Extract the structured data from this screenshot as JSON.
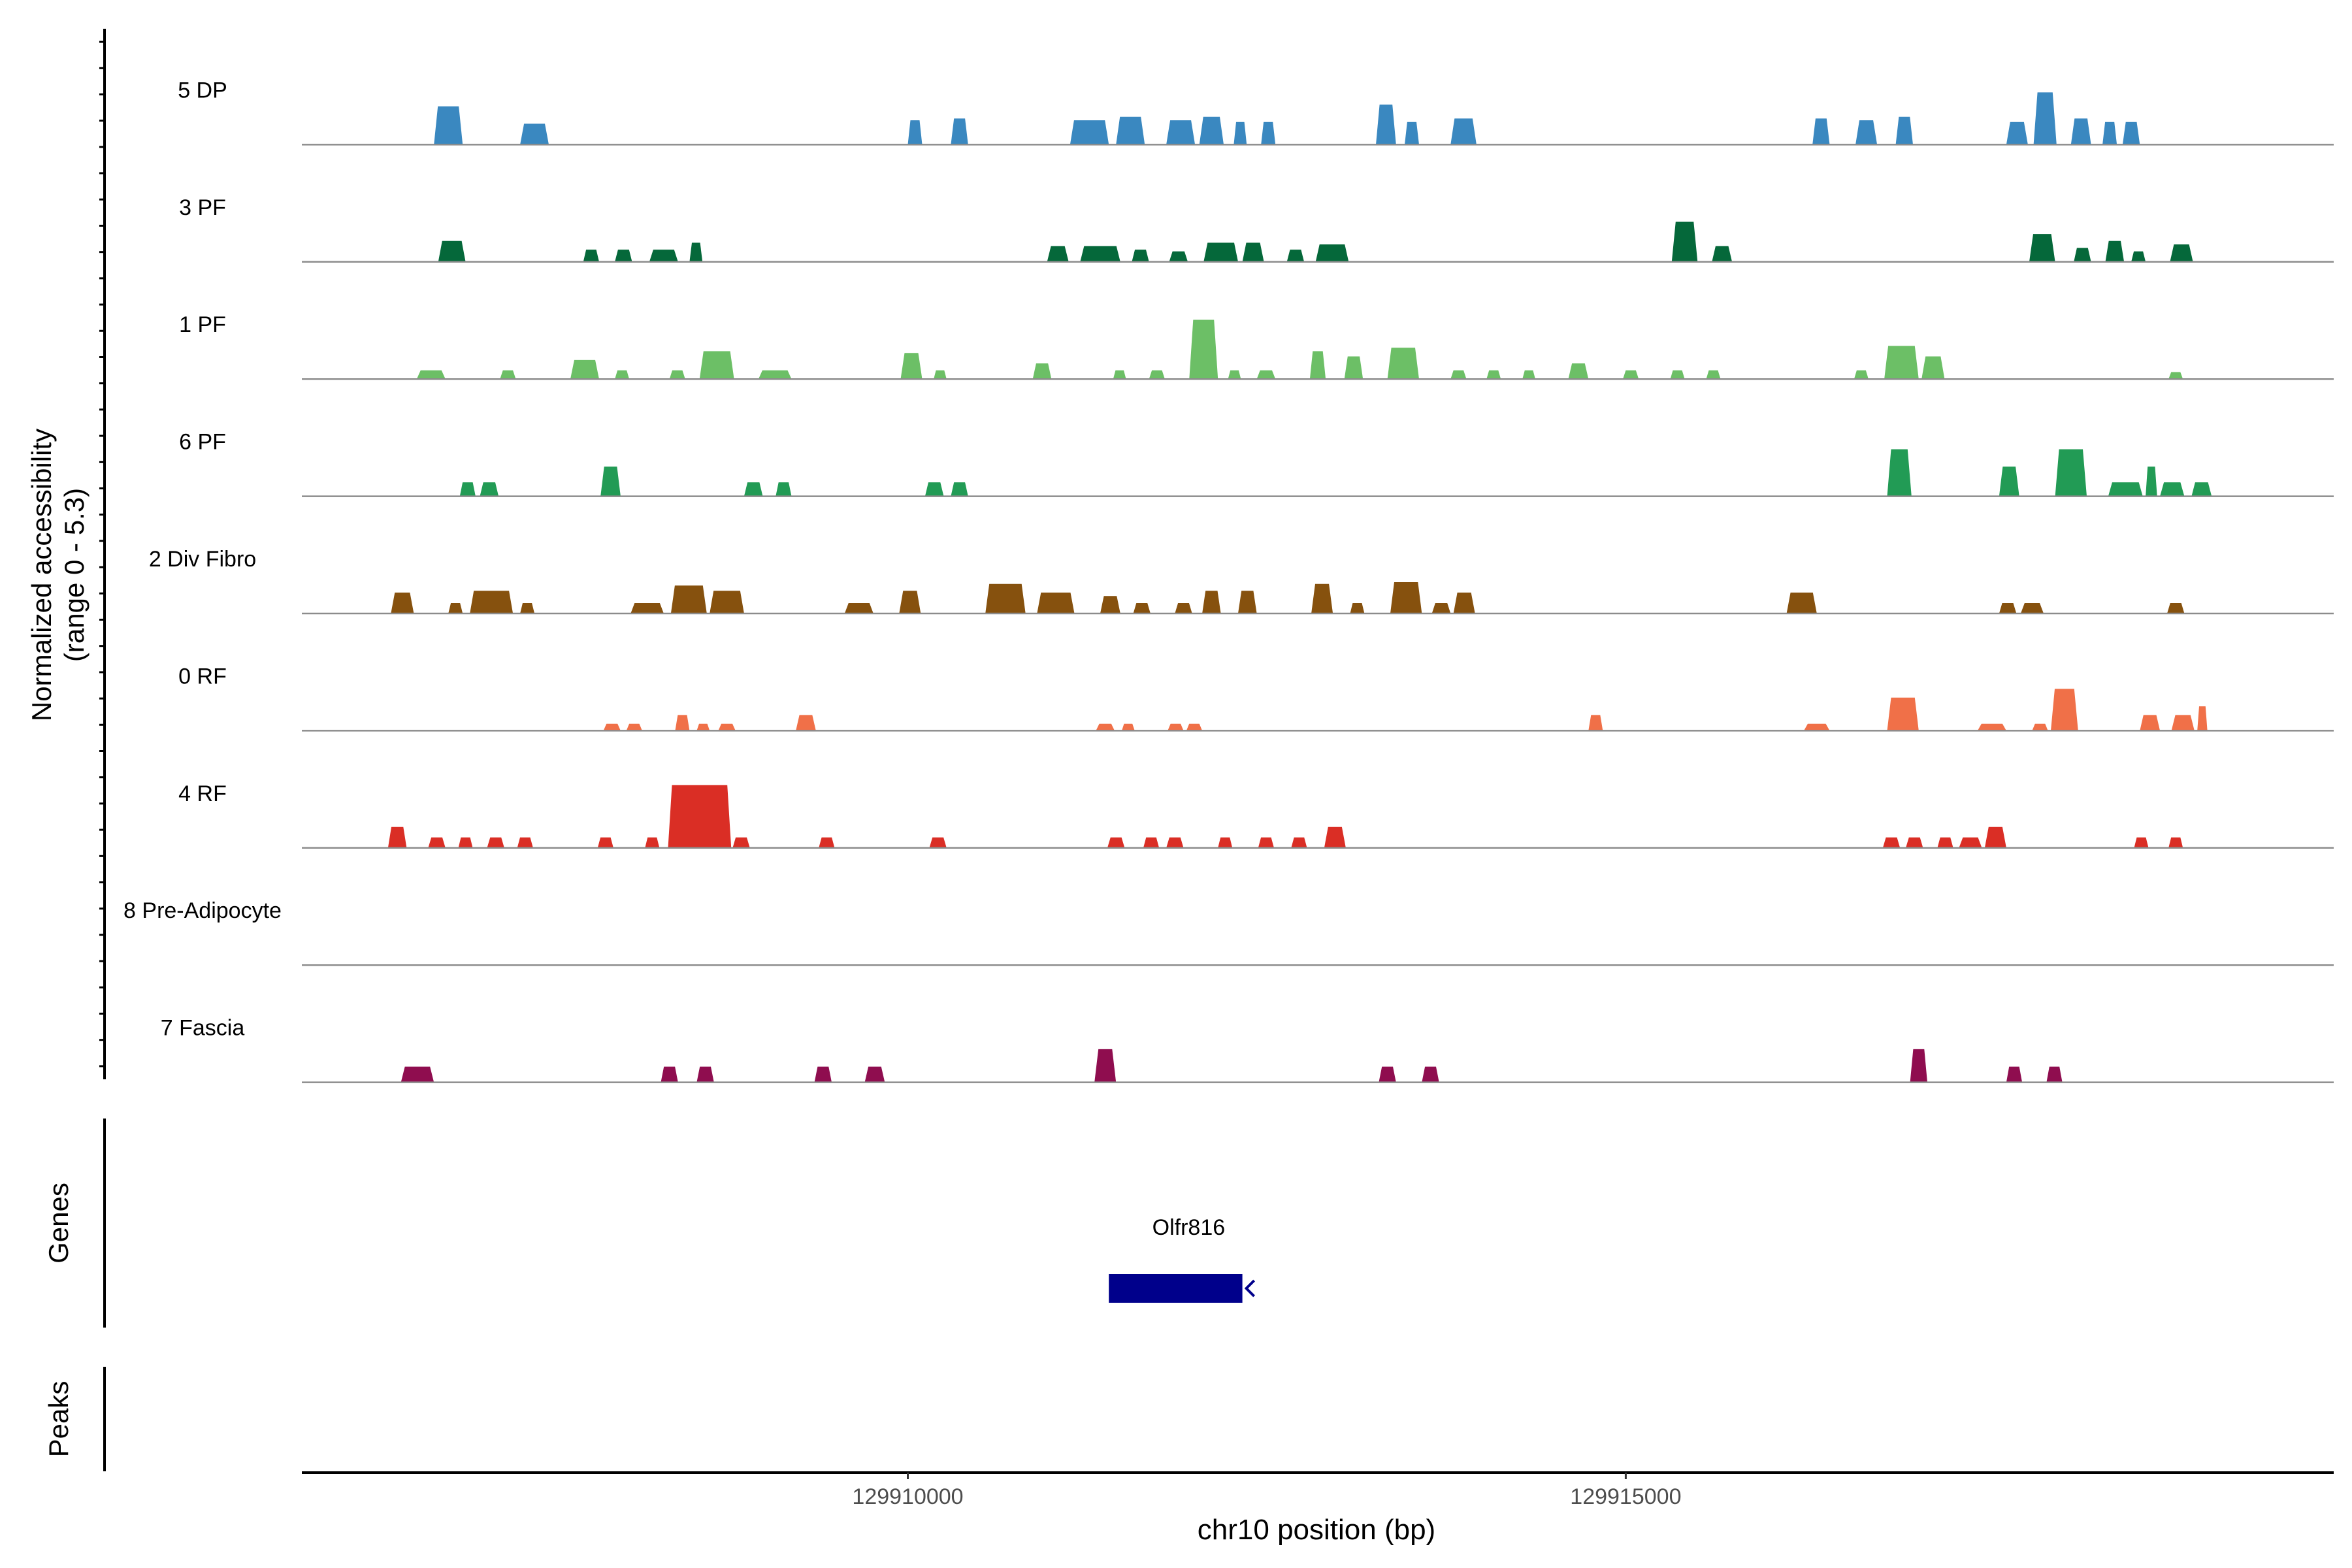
{
  "chart_data": {
    "type": "area",
    "title": "",
    "ylabel_line1": "Normalized accessibility",
    "ylabel_line2": "(range 0 - 5.3)",
    "xlabel": "chr10 position (bp)",
    "xlim": [
      129905780,
      129919930
    ],
    "ylim": [
      0,
      5.3
    ],
    "x_ticks": [
      {
        "value": 129910000,
        "label": "129910000"
      },
      {
        "value": 129915000,
        "label": "129915000"
      }
    ],
    "genes_label": "Genes",
    "peaks_label": "Peaks",
    "gene": {
      "name": "Olfr816",
      "start": 129911400,
      "end": 129912330,
      "strand": "-",
      "color": "#00008b"
    },
    "tracks": [
      {
        "name": "5 DP",
        "color": "#3a88c0",
        "peaks": [
          [
            129906700,
            129906900,
            2.2
          ],
          [
            129907300,
            129907500,
            1.2
          ],
          [
            129910000,
            129910100,
            1.4
          ],
          [
            129910300,
            129910420,
            1.5
          ],
          [
            129911130,
            129911400,
            1.4
          ],
          [
            129911450,
            129911650,
            1.6
          ],
          [
            129911800,
            129912000,
            1.4
          ],
          [
            129912030,
            129912200,
            1.6
          ],
          [
            129912270,
            129912360,
            1.3
          ],
          [
            129912460,
            129912560,
            1.3
          ],
          [
            129913260,
            129913400,
            2.3
          ],
          [
            129913460,
            129913560,
            1.3
          ],
          [
            129913780,
            129913960,
            1.5
          ],
          [
            129916300,
            129916420,
            1.5
          ],
          [
            129916600,
            129916750,
            1.4
          ],
          [
            129916880,
            129917000,
            1.6
          ],
          [
            129917650,
            129917800,
            1.3
          ],
          [
            129917840,
            129918000,
            3.0
          ],
          [
            129918100,
            129918240,
            1.5
          ],
          [
            129918320,
            129918420,
            1.3
          ],
          [
            129918460,
            129918580,
            1.3
          ]
        ]
      },
      {
        "name": "3 PF",
        "color": "#05683a",
        "peaks": [
          [
            129906730,
            129906920,
            1.2
          ],
          [
            129907740,
            129907850,
            0.7
          ],
          [
            129907960,
            129908080,
            0.7
          ],
          [
            129908200,
            129908400,
            0.7
          ],
          [
            129908480,
            129908570,
            1.1
          ],
          [
            129910970,
            129911120,
            0.9
          ],
          [
            129911200,
            129911480,
            0.9
          ],
          [
            129911560,
            129911680,
            0.7
          ],
          [
            129911820,
            129911950,
            0.6
          ],
          [
            129912060,
            129912300,
            1.1
          ],
          [
            129912330,
            129912480,
            1.1
          ],
          [
            129912640,
            129912760,
            0.7
          ],
          [
            129912840,
            129913070,
            1.0
          ],
          [
            129915320,
            129915500,
            2.3
          ],
          [
            129915600,
            129915740,
            0.9
          ],
          [
            129917810,
            129917990,
            1.6
          ],
          [
            129918120,
            129918240,
            0.8
          ],
          [
            129918340,
            129918470,
            1.2
          ],
          [
            129918520,
            129918620,
            0.6
          ],
          [
            129918790,
            129918950,
            1.0
          ]
        ]
      },
      {
        "name": "1 PF",
        "color": "#6cbf66",
        "peaks": [
          [
            129906580,
            129906780,
            0.5
          ],
          [
            129907160,
            129907270,
            0.5
          ],
          [
            129907650,
            129907850,
            1.1
          ],
          [
            129907960,
            129908060,
            0.5
          ],
          [
            129908340,
            129908450,
            0.5
          ],
          [
            129908550,
            129908790,
            1.6
          ],
          [
            129908960,
            129909190,
            0.5
          ],
          [
            129909950,
            129910100,
            1.5
          ],
          [
            129910180,
            129910270,
            0.5
          ],
          [
            129910870,
            129911000,
            0.9
          ],
          [
            129911430,
            129911520,
            0.5
          ],
          [
            129911680,
            129911790,
            0.5
          ],
          [
            129911960,
            129912160,
            3.4
          ],
          [
            129912230,
            129912320,
            0.5
          ],
          [
            129912430,
            129912560,
            0.5
          ],
          [
            129912800,
            129912910,
            1.6
          ],
          [
            129913040,
            129913170,
            1.3
          ],
          [
            129913340,
            129913560,
            1.8
          ],
          [
            129913780,
            129913890,
            0.5
          ],
          [
            129914030,
            129914130,
            0.5
          ],
          [
            129914280,
            129914370,
            0.5
          ],
          [
            129914600,
            129914740,
            0.9
          ],
          [
            129914980,
            129915090,
            0.5
          ],
          [
            129915310,
            129915410,
            0.5
          ],
          [
            129915560,
            129915660,
            0.5
          ],
          [
            129916590,
            129916690,
            0.5
          ],
          [
            129916800,
            129917040,
            1.9
          ],
          [
            129917060,
            129917220,
            1.3
          ],
          [
            129918780,
            129918880,
            0.4
          ]
        ]
      },
      {
        "name": "6 PF",
        "color": "#229b55",
        "peaks": [
          [
            129906880,
            129906990,
            0.8
          ],
          [
            129907020,
            129907150,
            0.8
          ],
          [
            129907860,
            129908000,
            1.7
          ],
          [
            129908860,
            129908990,
            0.8
          ],
          [
            129909080,
            129909190,
            0.8
          ],
          [
            129910120,
            129910250,
            0.8
          ],
          [
            129910300,
            129910420,
            0.8
          ],
          [
            129916820,
            129916990,
            2.7
          ],
          [
            129917600,
            129917740,
            1.7
          ],
          [
            129917990,
            129918210,
            2.7
          ],
          [
            129918360,
            129918600,
            0.8
          ],
          [
            129918620,
            129918700,
            1.7
          ],
          [
            129918720,
            129918890,
            0.8
          ],
          [
            129918940,
            129919080,
            0.8
          ]
        ]
      },
      {
        "name": "2 Div Fibro",
        "color": "#86510e",
        "peaks": [
          [
            129906400,
            129906560,
            1.2
          ],
          [
            129906800,
            129906900,
            0.6
          ],
          [
            129906950,
            129907250,
            1.3
          ],
          [
            129907300,
            129907400,
            0.6
          ],
          [
            129908070,
            129908300,
            0.6
          ],
          [
            129908350,
            129908600,
            1.6
          ],
          [
            129908620,
            129908860,
            1.3
          ],
          [
            129909560,
            129909760,
            0.6
          ],
          [
            129909940,
            129910090,
            1.3
          ],
          [
            129910540,
            129910820,
            1.7
          ],
          [
            129910900,
            129911160,
            1.2
          ],
          [
            129911340,
            129911480,
            1.0
          ],
          [
            129911570,
            129911690,
            0.6
          ],
          [
            129911860,
            129911980,
            0.6
          ],
          [
            129912050,
            129912180,
            1.3
          ],
          [
            129912300,
            129912430,
            1.3
          ],
          [
            129912810,
            129912960,
            1.7
          ],
          [
            129913080,
            129913180,
            0.6
          ],
          [
            129913360,
            129913580,
            1.8
          ],
          [
            129913650,
            129913780,
            0.6
          ],
          [
            129913800,
            129913950,
            1.2
          ],
          [
            129916120,
            129916330,
            1.2
          ],
          [
            129917600,
            129917720,
            0.6
          ],
          [
            129917750,
            129917910,
            0.6
          ],
          [
            129918770,
            129918890,
            0.6
          ]
        ]
      },
      {
        "name": "0 RF",
        "color": "#f07048",
        "peaks": [
          [
            129907880,
            129908000,
            0.4
          ],
          [
            129908040,
            129908150,
            0.4
          ],
          [
            129908380,
            129908480,
            0.9
          ],
          [
            129908530,
            129908620,
            0.4
          ],
          [
            129908680,
            129908800,
            0.4
          ],
          [
            129909220,
            129909360,
            0.9
          ],
          [
            129911310,
            129911440,
            0.4
          ],
          [
            129911490,
            129911580,
            0.4
          ],
          [
            129911810,
            129911920,
            0.4
          ],
          [
            129911940,
            129912050,
            0.4
          ],
          [
            129914740,
            129914840,
            0.9
          ],
          [
            129916240,
            129916420,
            0.4
          ],
          [
            129916820,
            129917040,
            1.9
          ],
          [
            129917450,
            129917650,
            0.4
          ],
          [
            129917830,
            129917940,
            0.4
          ],
          [
            129917960,
            129918150,
            2.4
          ],
          [
            129918580,
            129918720,
            0.9
          ],
          [
            129918800,
            129918960,
            0.9
          ],
          [
            129918980,
            129919050,
            1.4
          ]
        ]
      },
      {
        "name": "4 RF",
        "color": "#da2e25",
        "peaks": [
          [
            129906380,
            129906510,
            1.2
          ],
          [
            129906660,
            129906780,
            0.6
          ],
          [
            129906870,
            129906970,
            0.6
          ],
          [
            129907070,
            129907190,
            0.6
          ],
          [
            129907280,
            129907390,
            0.6
          ],
          [
            129907840,
            129907950,
            0.6
          ],
          [
            129908170,
            129908270,
            0.6
          ],
          [
            129908330,
            129908770,
            3.6
          ],
          [
            129908780,
            129908900,
            0.6
          ],
          [
            129909380,
            129909490,
            0.6
          ],
          [
            129910150,
            129910270,
            0.6
          ],
          [
            129911390,
            129911510,
            0.6
          ],
          [
            129911640,
            129911750,
            0.6
          ],
          [
            129911800,
            129911920,
            0.6
          ],
          [
            129912160,
            129912260,
            0.6
          ],
          [
            129912440,
            129912550,
            0.6
          ],
          [
            129912670,
            129912780,
            0.6
          ],
          [
            129912900,
            129913050,
            1.2
          ],
          [
            129916790,
            129916910,
            0.6
          ],
          [
            129916950,
            129917070,
            0.6
          ],
          [
            129917170,
            129917280,
            0.6
          ],
          [
            129917320,
            129917480,
            0.6
          ],
          [
            129917500,
            129917650,
            1.2
          ],
          [
            129918540,
            129918640,
            0.6
          ],
          [
            129918780,
            129918880,
            0.6
          ]
        ]
      },
      {
        "name": "8 Pre-Adipocyte",
        "color": "#9c2b6e",
        "peaks": []
      },
      {
        "name": "7 Fascia",
        "color": "#8f0d4f",
        "peaks": [
          [
            129906470,
            129906700,
            0.9
          ],
          [
            129908280,
            129908400,
            0.9
          ],
          [
            129908530,
            129908650,
            0.9
          ],
          [
            129909350,
            129909470,
            0.9
          ],
          [
            129909700,
            129909840,
            0.9
          ],
          [
            129911300,
            129911450,
            1.9
          ],
          [
            129913280,
            129913400,
            0.9
          ],
          [
            129913580,
            129913700,
            0.9
          ],
          [
            129916980,
            129917100,
            1.9
          ],
          [
            129917650,
            129917760,
            0.9
          ],
          [
            129917930,
            129918040,
            0.9
          ]
        ]
      }
    ]
  }
}
